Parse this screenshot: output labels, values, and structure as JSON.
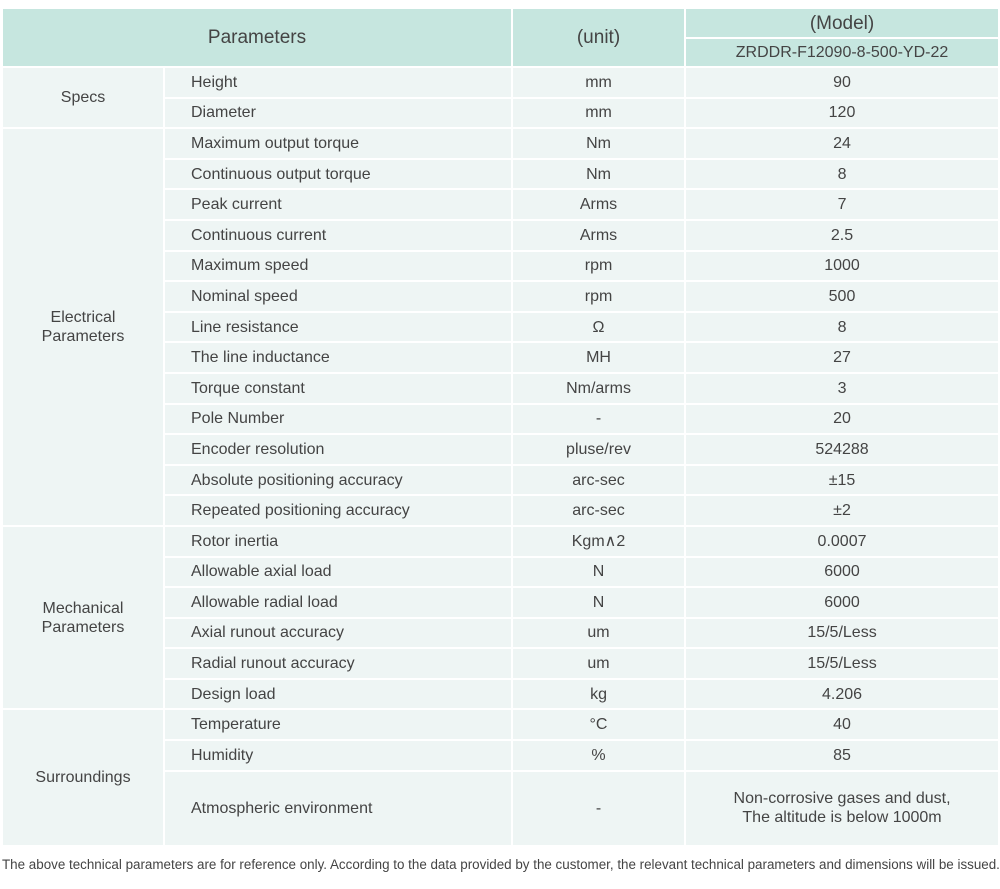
{
  "header": {
    "parameters": "Parameters",
    "unit": "(unit)",
    "model": "(Model)",
    "model_name": "ZRDDR-F12090-8-500-YD-22"
  },
  "groups": [
    {
      "name": "Specs",
      "rows": [
        {
          "parameter": "Height",
          "unit": "mm",
          "value": "90"
        },
        {
          "parameter": "Diameter",
          "unit": "mm",
          "value": "120"
        }
      ]
    },
    {
      "name": "Electrical\nParameters",
      "rows": [
        {
          "parameter": "Maximum output torque",
          "unit": "Nm",
          "value": "24"
        },
        {
          "parameter": "Continuous output torque",
          "unit": "Nm",
          "value": "8"
        },
        {
          "parameter": "Peak current",
          "unit": "Arms",
          "value": "7"
        },
        {
          "parameter": "Continuous current",
          "unit": "Arms",
          "value": "2.5"
        },
        {
          "parameter": "Maximum speed",
          "unit": "rpm",
          "value": "1000"
        },
        {
          "parameter": "Nominal speed",
          "unit": "rpm",
          "value": "500"
        },
        {
          "parameter": "Line resistance",
          "unit": "Ω",
          "value": "8"
        },
        {
          "parameter": "The line inductance",
          "unit": "MH",
          "value": "27"
        },
        {
          "parameter": "Torque constant",
          "unit": "Nm/arms",
          "value": "3"
        },
        {
          "parameter": "Pole Number",
          "unit": "-",
          "value": "20"
        },
        {
          "parameter": "Encoder resolution",
          "unit": "pluse/rev",
          "value": "524288"
        },
        {
          "parameter": "Absolute positioning accuracy",
          "unit": "arc-sec",
          "value": "±15"
        },
        {
          "parameter": "Repeated positioning accuracy",
          "unit": "arc-sec",
          "value": "±2"
        }
      ]
    },
    {
      "name": "Mechanical\nParameters",
      "rows": [
        {
          "parameter": "Rotor inertia",
          "unit": "Kgm∧2",
          "value": "0.0007"
        },
        {
          "parameter": "Allowable axial load",
          "unit": "N",
          "value": "6000"
        },
        {
          "parameter": "Allowable radial load",
          "unit": "N",
          "value": "6000"
        },
        {
          "parameter": "Axial runout accuracy",
          "unit": "um",
          "value": "15/5/Less"
        },
        {
          "parameter": "Radial runout accuracy",
          "unit": "um",
          "value": "15/5/Less"
        },
        {
          "parameter": "Design load",
          "unit": "kg",
          "value": "4.206"
        }
      ]
    },
    {
      "name": "Surroundings",
      "rows": [
        {
          "parameter": "Temperature",
          "unit": "°C",
          "value": "40"
        },
        {
          "parameter": "Humidity",
          "unit": "%",
          "value": "85"
        },
        {
          "parameter": "Atmospheric environment",
          "unit": "-",
          "value": "Non-corrosive gases and dust,\nThe altitude is below 1000m"
        }
      ]
    }
  ],
  "footnote": "The above technical parameters are for reference only. According to the data provided by the customer, the relevant technical parameters and dimensions will be issued."
}
